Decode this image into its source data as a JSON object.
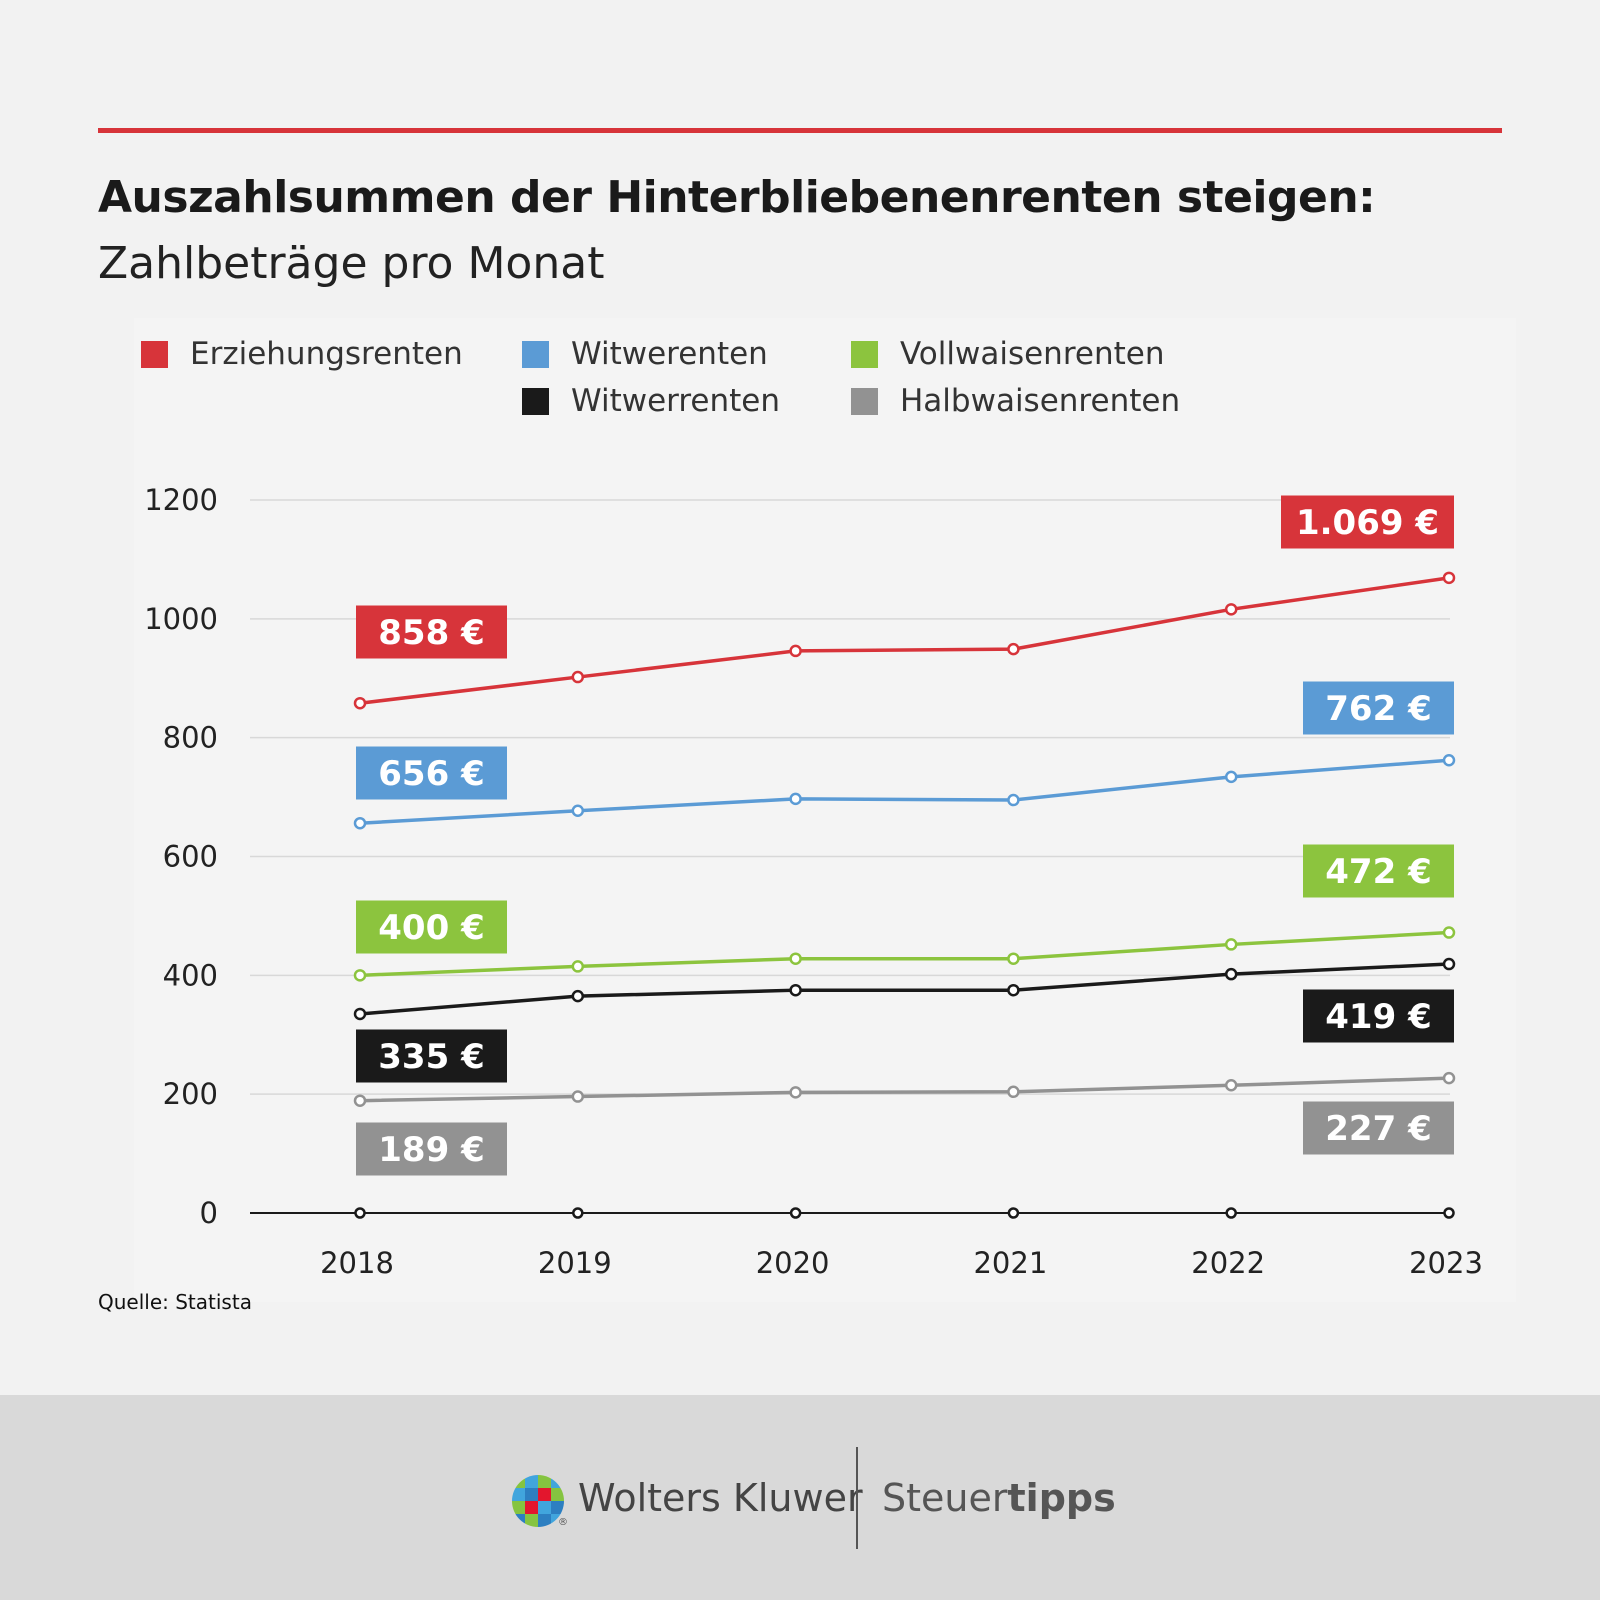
{
  "chart_data": {
    "type": "line",
    "title": "Auszahlsummen der Hinterbliebenenrenten steigen:",
    "subtitle": "Zahlbeträge pro Monat",
    "source": "Quelle: Statista",
    "x": [
      "2018",
      "2019",
      "2020",
      "2021",
      "2022",
      "2023"
    ],
    "ylim": [
      0,
      1200
    ],
    "yticks": [
      "0",
      "200",
      "400",
      "600",
      "800",
      "1000",
      "1200"
    ],
    "ytick_values": [
      0,
      200,
      400,
      600,
      800,
      1000,
      1200
    ],
    "grid": true,
    "legend_position": "top",
    "series": [
      {
        "name": "Erziehungsrenten",
        "color": "#d7343a",
        "values": [
          858,
          902,
          946,
          949,
          1016,
          1069
        ],
        "first_label": "858 €",
        "last_label": "1.069 €"
      },
      {
        "name": "Witwerenten",
        "color": "#5b9bd5",
        "values": [
          656,
          677,
          697,
          695,
          734,
          762
        ],
        "first_label": "656 €",
        "last_label": "762 €"
      },
      {
        "name": "Vollwaisenrenten",
        "color": "#8cc43e",
        "values": [
          400,
          415,
          428,
          428,
          452,
          472
        ],
        "first_label": "400 €",
        "last_label": "472 €"
      },
      {
        "name": "Witwerrenten",
        "color": "#1a1a1a",
        "values": [
          335,
          365,
          375,
          375,
          402,
          419
        ],
        "first_label": "335 €",
        "last_label": "419 €"
      },
      {
        "name": "Halbwaisenrenten",
        "color": "#929292",
        "values": [
          189,
          196,
          203,
          204,
          215,
          227
        ],
        "first_label": "189 €",
        "last_label": "227 €"
      }
    ]
  },
  "legend": {
    "items": [
      {
        "label": "Erziehungsrenten",
        "color": "#d7343a"
      },
      {
        "label": "Witwerenten",
        "color": "#5b9bd5"
      },
      {
        "label": "Vollwaisenrenten",
        "color": "#8cc43e"
      },
      {
        "label": "Witwerrenten",
        "color": "#1a1a1a"
      },
      {
        "label": "Halbwaisenrenten",
        "color": "#929292"
      }
    ]
  },
  "footer": {
    "brand_left": "Wolters Kluwer",
    "brand_right_light": "Steuer",
    "brand_right_bold": "tipps",
    "registered": "®"
  }
}
